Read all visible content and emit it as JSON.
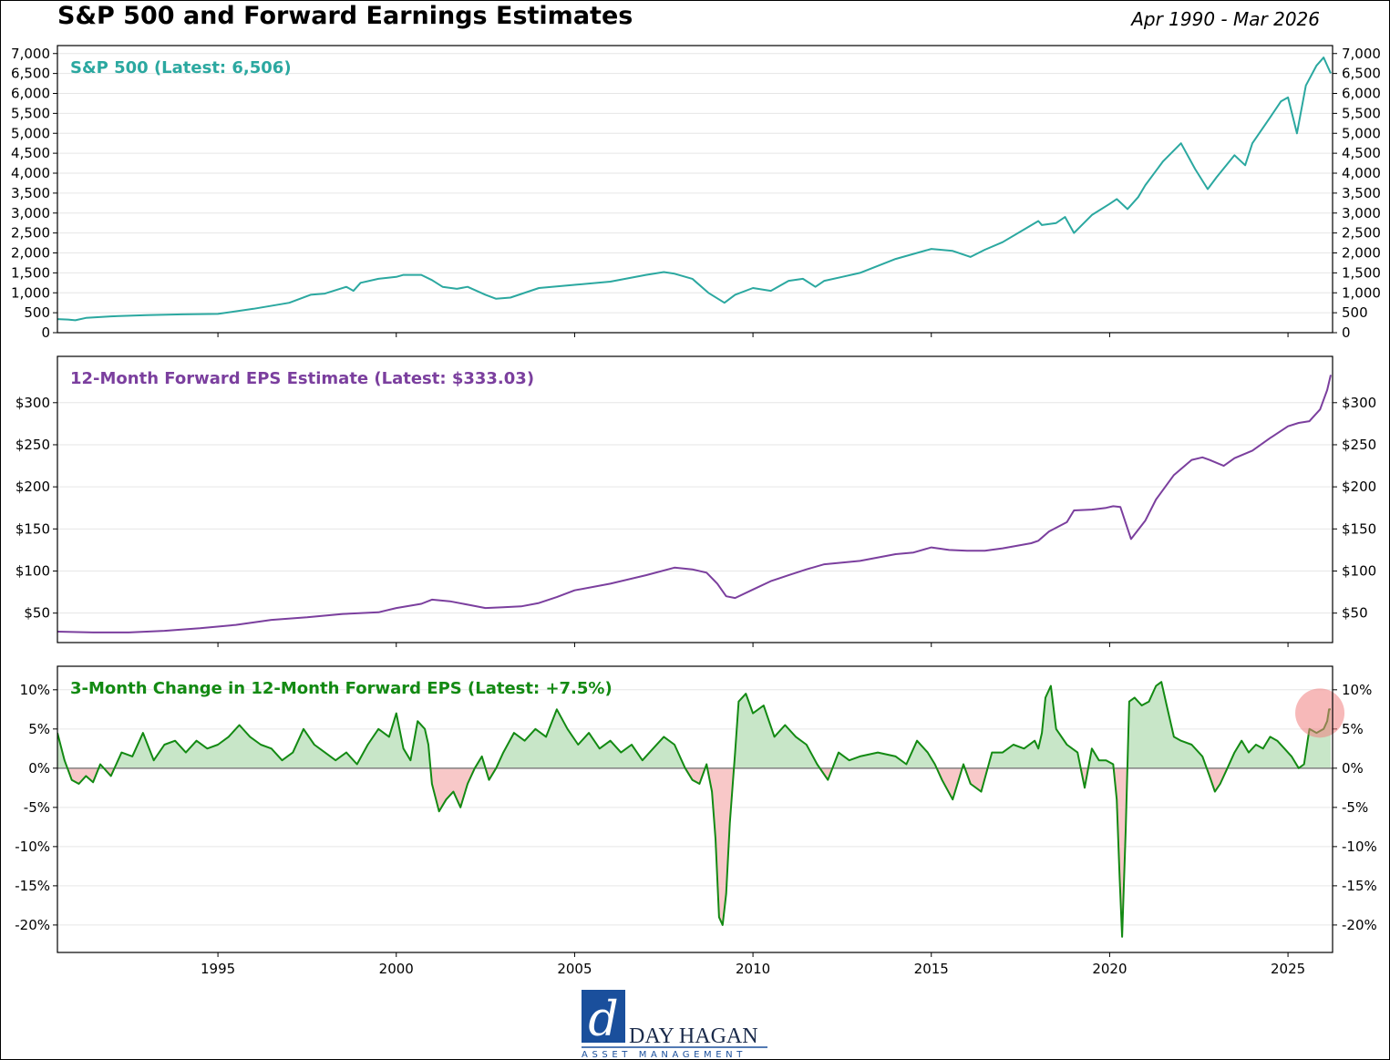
{
  "header": {
    "title": "S&P 500 and Forward Earnings Estimates",
    "date_range": "Apr 1990 - Mar 2026"
  },
  "logo": {
    "mark": "d",
    "name": "DAY HAGAN",
    "tagline": "ASSET MANAGEMENT"
  },
  "colors": {
    "spx": "#2ba8a0",
    "eps": "#7b3f9e",
    "chg": "#138a13",
    "pos_fill": "#c8e6c8",
    "neg_fill": "#f8c8c8",
    "highlight": "#f08080"
  },
  "chart_data": [
    {
      "type": "line",
      "title": "S&P 500 (Latest: 6,506)",
      "xlim": [
        1990.5,
        2026.25
      ],
      "ylim": [
        0,
        7200
      ],
      "yticks": [
        0,
        500,
        1000,
        1500,
        2000,
        2500,
        3000,
        3500,
        4000,
        4500,
        5000,
        5500,
        6000,
        6500,
        7000
      ],
      "ytick_labels": [
        "0",
        "500",
        "1,000",
        "1,500",
        "2,000",
        "2,500",
        "3,000",
        "3,500",
        "4,000",
        "4,500",
        "5,000",
        "5,500",
        "6,000",
        "6,500",
        "7,000"
      ],
      "series": [
        {
          "name": "S&P 500",
          "x": [
            1990.5,
            1990.8,
            1991.0,
            1991.3,
            1992.0,
            1993.0,
            1994.0,
            1995.0,
            1996.0,
            1997.0,
            1997.6,
            1998.0,
            1998.6,
            1998.8,
            1999.0,
            1999.5,
            2000.0,
            2000.2,
            2000.7,
            2001.0,
            2001.3,
            2001.7,
            2002.0,
            2002.5,
            2002.8,
            2003.2,
            2004.0,
            2005.0,
            2006.0,
            2007.0,
            2007.5,
            2007.8,
            2008.3,
            2008.75,
            2009.2,
            2009.5,
            2010.0,
            2010.5,
            2011.0,
            2011.4,
            2011.75,
            2012.0,
            2012.5,
            2013.0,
            2014.0,
            2015.0,
            2015.6,
            2016.1,
            2016.5,
            2017.0,
            2018.0,
            2018.1,
            2018.5,
            2018.75,
            2019.0,
            2019.5,
            2020.0,
            2020.2,
            2020.5,
            2020.8,
            2021.0,
            2021.5,
            2022.0,
            2022.4,
            2022.75,
            2023.0,
            2023.5,
            2023.8,
            2024.0,
            2024.5,
            2024.8,
            2025.0,
            2025.25,
            2025.5,
            2025.8,
            2026.0,
            2026.1,
            2026.2
          ],
          "values": [
            340,
            330,
            310,
            370,
            410,
            440,
            460,
            470,
            600,
            750,
            950,
            980,
            1150,
            1050,
            1250,
            1350,
            1400,
            1450,
            1450,
            1320,
            1150,
            1100,
            1150,
            950,
            850,
            880,
            1120,
            1200,
            1280,
            1450,
            1520,
            1480,
            1350,
            1000,
            750,
            950,
            1120,
            1050,
            1300,
            1350,
            1150,
            1300,
            1400,
            1500,
            1850,
            2100,
            2050,
            1900,
            2080,
            2270,
            2800,
            2700,
            2750,
            2900,
            2500,
            2950,
            3230,
            3350,
            3100,
            3400,
            3700,
            4300,
            4750,
            4100,
            3600,
            3900,
            4450,
            4200,
            4750,
            5400,
            5800,
            5900,
            5000,
            6200,
            6700,
            6900,
            6700,
            6506
          ]
        }
      ]
    },
    {
      "type": "line",
      "title": "12-Month Forward EPS Estimate (Latest: $333.03)",
      "xlim": [
        1990.5,
        2026.25
      ],
      "ylim": [
        15,
        355
      ],
      "yticks": [
        50,
        100,
        150,
        200,
        250,
        300
      ],
      "ytick_labels": [
        "$50",
        "$100",
        "$150",
        "$200",
        "$250",
        "$300"
      ],
      "series": [
        {
          "name": "12-Month Forward EPS",
          "x": [
            1990.5,
            1991.5,
            1992.5,
            1993.5,
            1994.5,
            1995.5,
            1996.5,
            1997.5,
            1998.5,
            1999.5,
            2000.0,
            2000.7,
            2001.0,
            2001.5,
            2002.0,
            2002.5,
            2003.0,
            2003.5,
            2004.0,
            2004.5,
            2005.0,
            2006.0,
            2007.0,
            2007.8,
            2008.3,
            2008.7,
            2009.0,
            2009.25,
            2009.5,
            2010.0,
            2010.5,
            2011.0,
            2011.5,
            2012.0,
            2013.0,
            2014.0,
            2014.5,
            2015.0,
            2015.5,
            2016.0,
            2016.5,
            2017.0,
            2017.8,
            2018.0,
            2018.3,
            2018.8,
            2019.0,
            2019.5,
            2019.9,
            2020.1,
            2020.3,
            2020.6,
            2021.0,
            2021.3,
            2021.8,
            2022.3,
            2022.6,
            2022.8,
            2023.2,
            2023.5,
            2024.0,
            2024.5,
            2025.0,
            2025.3,
            2025.6,
            2025.9,
            2026.1,
            2026.2
          ],
          "values": [
            28,
            27,
            27,
            29,
            32,
            36,
            42,
            45,
            49,
            51,
            56,
            61,
            66,
            64,
            60,
            56,
            57,
            58,
            62,
            69,
            77,
            85,
            95,
            104,
            102,
            98,
            85,
            70,
            68,
            78,
            88,
            95,
            102,
            108,
            112,
            120,
            122,
            128,
            125,
            124,
            124,
            127,
            133,
            136,
            147,
            158,
            172,
            173,
            175,
            177,
            176,
            138,
            160,
            185,
            214,
            232,
            235,
            232,
            225,
            234,
            243,
            258,
            272,
            276,
            278,
            292,
            315,
            333.03
          ]
        }
      ]
    },
    {
      "type": "area",
      "title": "3-Month Change in 12-Month Forward EPS (Latest: +7.5%)",
      "xlim": [
        1990.5,
        2026.25
      ],
      "ylim": [
        -23.5,
        13
      ],
      "xticks": [
        1995,
        2000,
        2005,
        2010,
        2015,
        2020,
        2025
      ],
      "xtick_labels": [
        "1995",
        "2000",
        "2005",
        "2010",
        "2015",
        "2020",
        "2025"
      ],
      "yticks": [
        -20,
        -15,
        -10,
        -5,
        0,
        5,
        10
      ],
      "ytick_labels": [
        "-20%",
        "-15%",
        "-10%",
        "-5%",
        "0%",
        "5%",
        "10%"
      ],
      "series": [
        {
          "name": "3-Month Change (%)",
          "x": [
            1990.5,
            1990.7,
            1990.9,
            1991.1,
            1991.3,
            1991.5,
            1991.7,
            1992.0,
            1992.3,
            1992.6,
            1992.9,
            1993.2,
            1993.5,
            1993.8,
            1994.1,
            1994.4,
            1994.7,
            1995.0,
            1995.3,
            1995.6,
            1995.9,
            1996.2,
            1996.5,
            1996.8,
            1997.1,
            1997.4,
            1997.7,
            1998.0,
            1998.3,
            1998.6,
            1998.9,
            1999.2,
            1999.5,
            1999.8,
            2000.0,
            2000.2,
            2000.4,
            2000.6,
            2000.8,
            2000.9,
            2001.0,
            2001.2,
            2001.4,
            2001.6,
            2001.8,
            2002.0,
            2002.2,
            2002.4,
            2002.6,
            2002.8,
            2003.0,
            2003.3,
            2003.6,
            2003.9,
            2004.2,
            2004.5,
            2004.8,
            2005.1,
            2005.4,
            2005.7,
            2006.0,
            2006.3,
            2006.6,
            2006.9,
            2007.2,
            2007.5,
            2007.8,
            2008.1,
            2008.3,
            2008.5,
            2008.7,
            2008.85,
            2008.95,
            2009.05,
            2009.15,
            2009.25,
            2009.35,
            2009.5,
            2009.6,
            2009.8,
            2010.0,
            2010.3,
            2010.6,
            2010.9,
            2011.2,
            2011.5,
            2011.8,
            2012.1,
            2012.4,
            2012.7,
            2013.0,
            2013.5,
            2014.0,
            2014.3,
            2014.6,
            2014.9,
            2015.1,
            2015.3,
            2015.6,
            2015.9,
            2016.1,
            2016.4,
            2016.7,
            2017.0,
            2017.3,
            2017.6,
            2017.9,
            2018.0,
            2018.1,
            2018.2,
            2018.35,
            2018.5,
            2018.8,
            2019.1,
            2019.3,
            2019.5,
            2019.7,
            2019.9,
            2020.1,
            2020.2,
            2020.28,
            2020.35,
            2020.45,
            2020.55,
            2020.7,
            2020.9,
            2021.1,
            2021.3,
            2021.45,
            2021.6,
            2021.8,
            2022.0,
            2022.3,
            2022.6,
            2022.8,
            2022.95,
            2023.1,
            2023.3,
            2023.5,
            2023.7,
            2023.9,
            2024.1,
            2024.3,
            2024.5,
            2024.7,
            2024.9,
            2025.1,
            2025.3,
            2025.45,
            2025.6,
            2025.8,
            2026.0,
            2026.1,
            2026.15,
            2026.2
          ],
          "values": [
            4.5,
            1.0,
            -1.5,
            -2.0,
            -1.0,
            -1.8,
            0.5,
            -1.0,
            2.0,
            1.5,
            4.5,
            1.0,
            3.0,
            3.5,
            2.0,
            3.5,
            2.5,
            3.0,
            4.0,
            5.5,
            4.0,
            3.0,
            2.5,
            1.0,
            2.0,
            5.0,
            3.0,
            2.0,
            1.0,
            2.0,
            0.5,
            3.0,
            5.0,
            4.0,
            7.0,
            2.5,
            1.0,
            6.0,
            5.0,
            3.0,
            -2.0,
            -5.5,
            -4.0,
            -3.0,
            -5.0,
            -2.0,
            0.0,
            1.5,
            -1.5,
            0.0,
            2.0,
            4.5,
            3.5,
            5.0,
            4.0,
            7.5,
            5.0,
            3.0,
            4.5,
            2.5,
            3.5,
            2.0,
            3.0,
            1.0,
            2.5,
            4.0,
            3.0,
            0.0,
            -1.5,
            -2.0,
            0.5,
            -3.0,
            -9.0,
            -19.0,
            -20.0,
            -16.0,
            -7.0,
            2.0,
            8.5,
            9.5,
            7.0,
            8.0,
            4.0,
            5.5,
            4.0,
            3.0,
            0.5,
            -1.5,
            2.0,
            1.0,
            1.5,
            2.0,
            1.5,
            0.5,
            3.5,
            2.0,
            0.5,
            -1.5,
            -4.0,
            0.5,
            -2.0,
            -3.0,
            2.0,
            2.0,
            3.0,
            2.5,
            3.5,
            2.5,
            4.5,
            9.0,
            10.5,
            5.0,
            3.0,
            2.0,
            -2.5,
            2.5,
            1.0,
            1.0,
            0.5,
            -4.0,
            -14.0,
            -21.5,
            -8.0,
            8.5,
            9.0,
            8.0,
            8.5,
            10.5,
            11.0,
            8.0,
            4.0,
            3.5,
            3.0,
            1.5,
            -1.0,
            -3.0,
            -2.0,
            0.0,
            2.0,
            3.5,
            2.0,
            3.0,
            2.5,
            4.0,
            3.5,
            2.5,
            1.5,
            0.0,
            0.5,
            5.0,
            4.5,
            5.0,
            6.0,
            7.5,
            7.5
          ]
        }
      ],
      "annotation": "highlight circle at latest value"
    }
  ]
}
